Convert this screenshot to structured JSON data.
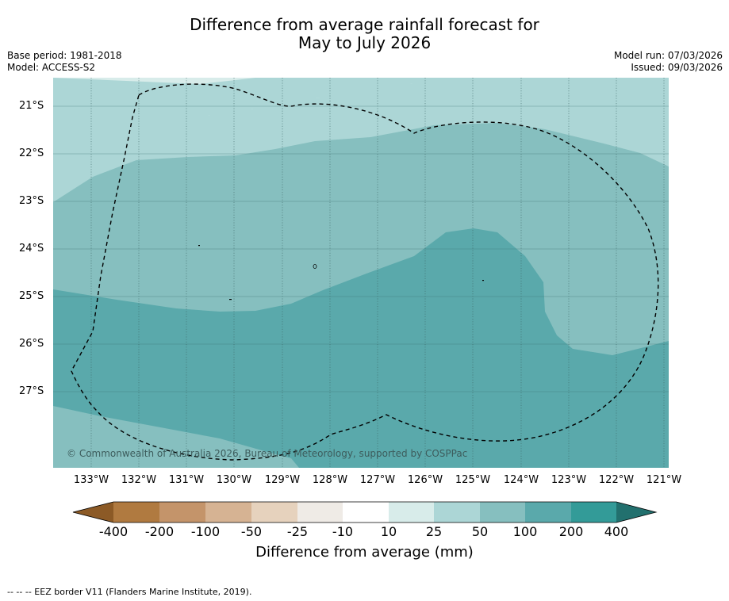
{
  "title_line1": "Difference from average rainfall forecast for",
  "title_line2": "May to July 2026",
  "base_period": "Base period: 1981-2018",
  "model": "Model: ACCESS-S2",
  "model_run": "Model run: 07/03/2026",
  "issued": "Issued: 09/03/2026",
  "credit": "© Commonwealth of Australia 2026, Bureau of Meteorology, supported by COSPPac",
  "footer": "--  --  -- EEZ border V11 (Flanders Marine Institute, 2019).",
  "lat_labels": [
    "21°S",
    "22°S",
    "23°S",
    "24°S",
    "25°S",
    "26°S",
    "27°S"
  ],
  "lon_labels": [
    "133°W",
    "132°W",
    "131°W",
    "130°W",
    "129°W",
    "128°W",
    "127°W",
    "126°W",
    "125°W",
    "124°W",
    "123°W",
    "122°W",
    "121°W"
  ],
  "colorbar": {
    "title": "Difference from average (mm)",
    "ticks": [
      "-400",
      "-200",
      "-100",
      "-50",
      "-25",
      "-10",
      "10",
      "25",
      "50",
      "100",
      "200",
      "400"
    ],
    "colors": [
      "#8c5a26",
      "#b07a40",
      "#c4946a",
      "#d6b393",
      "#e6d2bd",
      "#efebe6",
      "#ffffff",
      "#d8ecea",
      "#acd6d6",
      "#86bfbf",
      "#5aa9ab",
      "#339b98",
      "#22706e"
    ]
  },
  "map_colors": {
    "band_10_25": "#d8ecea",
    "band_25_50": "#acd6d6",
    "band_50_100": "#86bfbf",
    "band_100_200": "#5aa9ab"
  },
  "chart_data": {
    "type": "heatmap",
    "title": "Difference from average rainfall forecast for May to July 2026",
    "units": "mm",
    "lat_range": [
      "20.4°S",
      "28.6°S"
    ],
    "lon_range": [
      "133.8°W",
      "120.9°W"
    ],
    "dominant_category": "50 to 200 mm above average, with wettest (100 to 200) across the south and centre-east"
  }
}
